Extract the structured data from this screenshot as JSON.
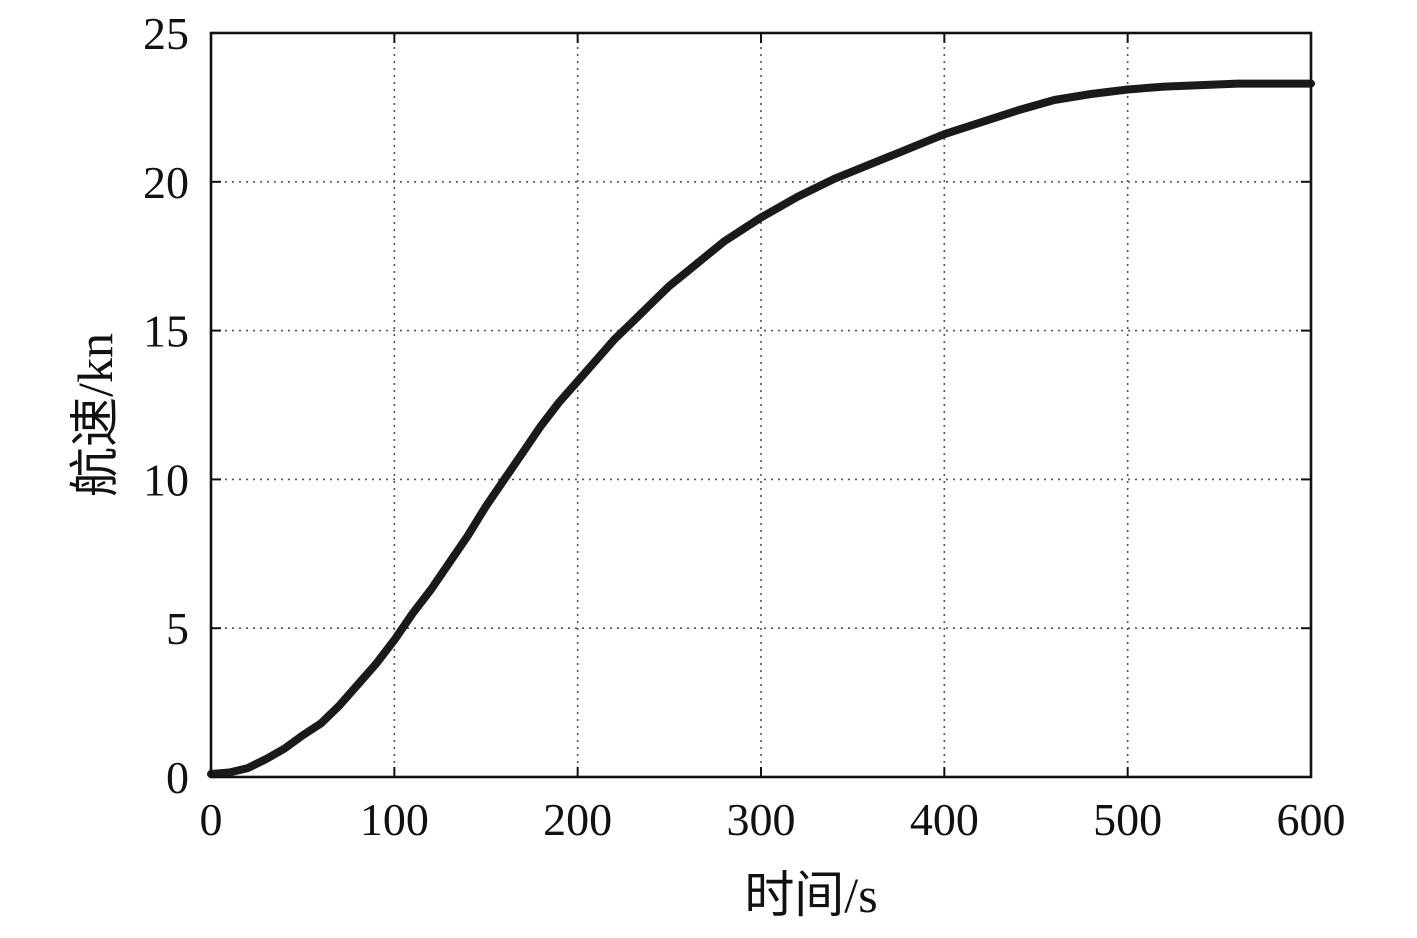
{
  "chart_data": {
    "type": "line",
    "title": "",
    "xlabel": "时间/s",
    "ylabel": "航速/kn",
    "xlim": [
      0,
      600
    ],
    "ylim": [
      0,
      25
    ],
    "xticks": [
      0,
      100,
      200,
      300,
      400,
      500,
      600
    ],
    "yticks": [
      0,
      5,
      10,
      15,
      20,
      25
    ],
    "grid": true,
    "legend": "none",
    "series": [
      {
        "color": "#1a1a1a",
        "x": [
          0,
          10,
          20,
          30,
          40,
          50,
          60,
          70,
          80,
          90,
          100,
          110,
          120,
          130,
          140,
          150,
          160,
          170,
          180,
          190,
          200,
          210,
          220,
          230,
          240,
          250,
          260,
          270,
          280,
          290,
          300,
          320,
          340,
          360,
          380,
          400,
          420,
          440,
          460,
          480,
          500,
          520,
          540,
          560,
          580,
          600
        ],
        "y": [
          0.1,
          0.15,
          0.3,
          0.6,
          0.95,
          1.4,
          1.8,
          2.4,
          3.1,
          3.8,
          4.6,
          5.5,
          6.3,
          7.2,
          8.1,
          9.1,
          10.0,
          10.9,
          11.8,
          12.6,
          13.3,
          14.0,
          14.7,
          15.3,
          15.9,
          16.5,
          17.0,
          17.5,
          18.0,
          18.4,
          18.8,
          19.5,
          20.1,
          20.6,
          21.1,
          21.6,
          22.0,
          22.4,
          22.75,
          22.95,
          23.1,
          23.2,
          23.25,
          23.3,
          23.3,
          23.3
        ]
      }
    ]
  }
}
